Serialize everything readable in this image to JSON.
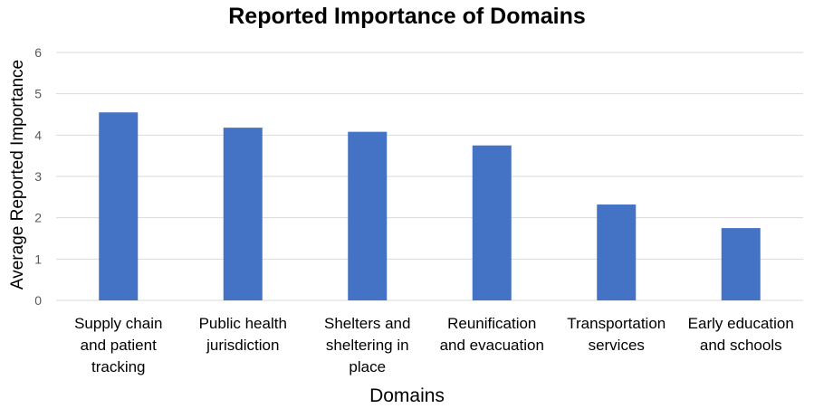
{
  "chart_data": {
    "type": "bar",
    "title": "Reported Importance of Domains",
    "xlabel": "Domains",
    "ylabel": "Average Reported Importance",
    "categories": [
      [
        "Supply chain",
        "and patient",
        "tracking"
      ],
      [
        "Public health",
        "jurisdiction"
      ],
      [
        "Shelters and",
        "sheltering in",
        "place"
      ],
      [
        "Reunification",
        "and evacuation"
      ],
      [
        "Transportation",
        "services"
      ],
      [
        "Early education",
        "and schools"
      ]
    ],
    "values": [
      4.55,
      4.18,
      4.08,
      3.75,
      2.32,
      1.75
    ],
    "ylim": [
      0,
      6
    ],
    "yticks": [
      "0",
      "1",
      "2",
      "3",
      "4",
      "5",
      "6"
    ],
    "grid": true,
    "bar_color": "#4472C4",
    "grid_color": "#D9D9D9"
  }
}
